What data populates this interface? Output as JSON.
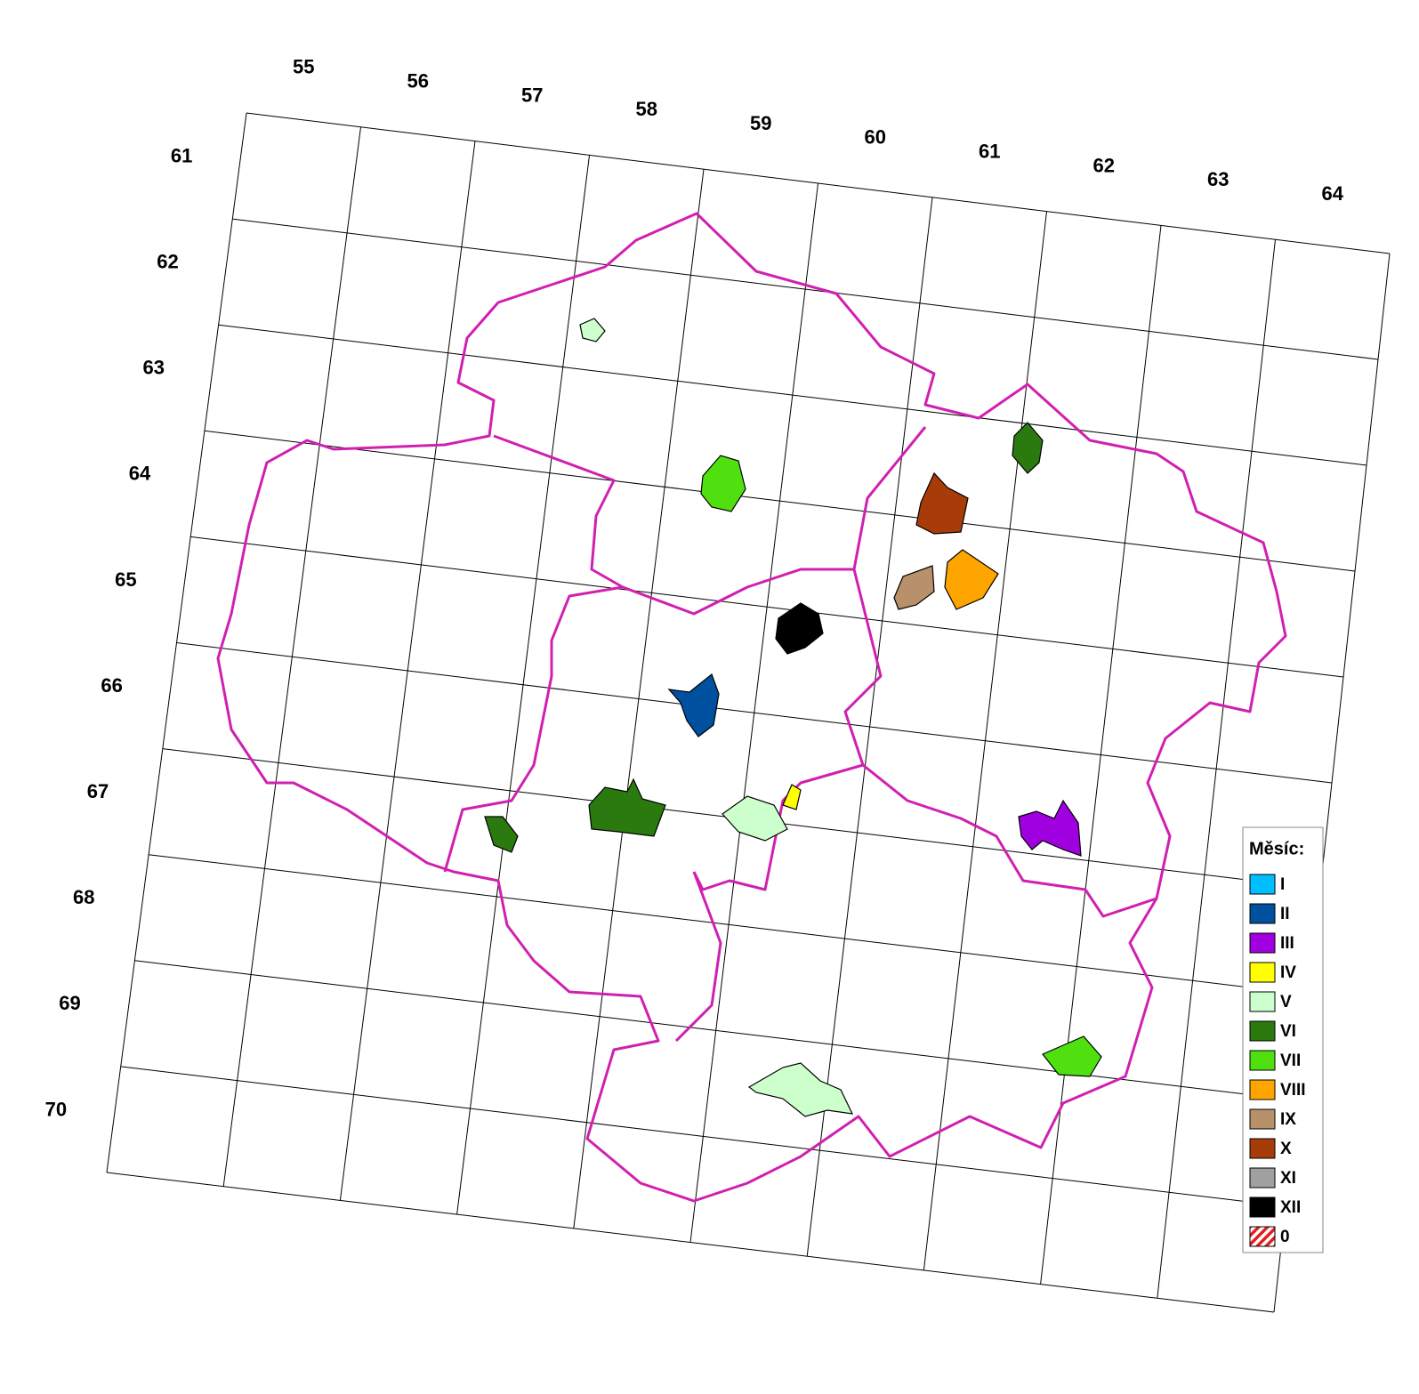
{
  "grid": {
    "columns": [
      "55",
      "56",
      "57",
      "58",
      "59",
      "60",
      "61",
      "62",
      "63",
      "64"
    ],
    "rows": [
      "61",
      "62",
      "63",
      "64",
      "65",
      "66",
      "67",
      "68",
      "69",
      "70"
    ]
  },
  "legend": {
    "title": "Měsíc:",
    "items": [
      {
        "label": "I",
        "color": "#00bfff"
      },
      {
        "label": "II",
        "color": "#0050a0"
      },
      {
        "label": "III",
        "color": "#a000e0"
      },
      {
        "label": "IV",
        "color": "#ffff00"
      },
      {
        "label": "V",
        "color": "#ccffcc"
      },
      {
        "label": "VI",
        "color": "#2a7a10"
      },
      {
        "label": "VII",
        "color": "#50e010"
      },
      {
        "label": "VIII",
        "color": "#ffa500"
      },
      {
        "label": "IX",
        "color": "#b8906a"
      },
      {
        "label": "X",
        "color": "#a83c08"
      },
      {
        "label": "XI",
        "color": "#a0a0a0"
      },
      {
        "label": "XII",
        "color": "#000000"
      },
      {
        "label": "0",
        "color": "#e02020",
        "pattern": "hatch"
      }
    ]
  }
}
